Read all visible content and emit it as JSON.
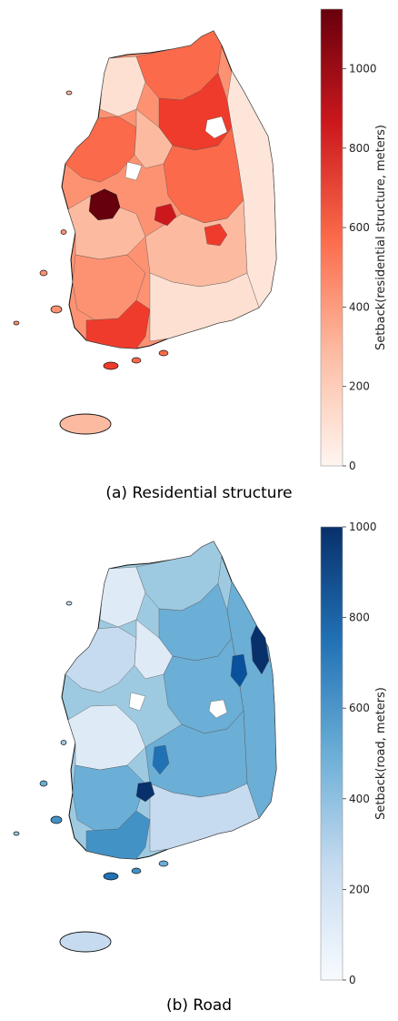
{
  "panels": [
    {
      "caption": "(a) Residential structure",
      "colorbar": {
        "label": "Setback(residential structure, meters)",
        "min": 0,
        "max": 1150,
        "ticks": [
          0,
          200,
          400,
          600,
          800,
          1000
        ],
        "colormap": "Reds",
        "colors": [
          "#fff5f0",
          "#fcbba1",
          "#fb6a4a",
          "#cb181d",
          "#67000d"
        ]
      }
    },
    {
      "caption": "(b) Road",
      "colorbar": {
        "label": "Setback(road, meters)",
        "min": 0,
        "max": 1000,
        "ticks": [
          0,
          200,
          400,
          600,
          800,
          1000
        ],
        "colormap": "Blues",
        "colors": [
          "#f7fbff",
          "#c6dbef",
          "#6baed6",
          "#2171b5",
          "#08306b"
        ]
      }
    }
  ]
}
